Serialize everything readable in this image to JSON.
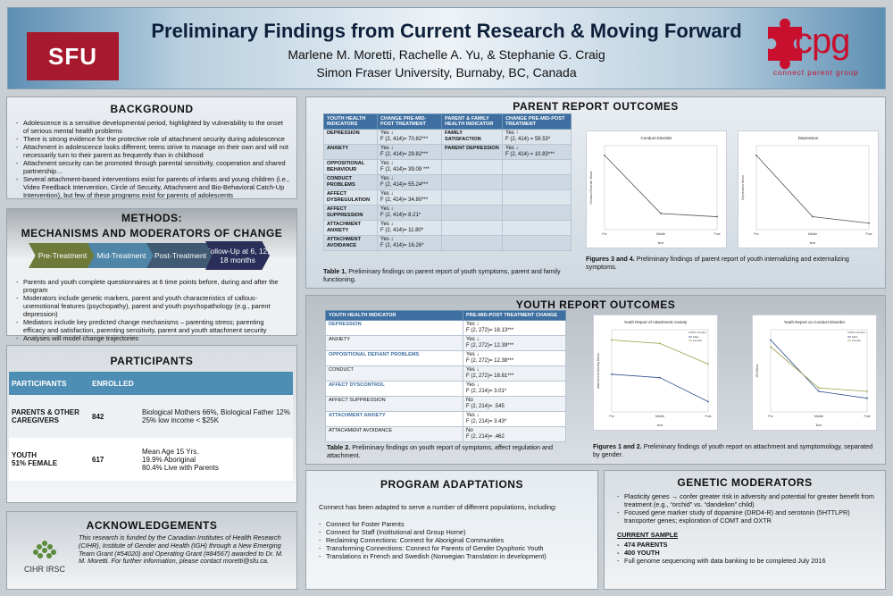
{
  "header": {
    "sfu_logo": "SFU",
    "title": "Preliminary Findings from Current Research & Moving Forward",
    "authors": "Marlene M. Moretti, Rachelle A. Yu, & Stephanie G. Craig",
    "university": "Simon Fraser University, Burnaby, BC, Canada",
    "cpg_logo": "cpg",
    "cpg_sub": "connect parent group",
    "colors": {
      "sfu_red": "#a6192e",
      "cpg_red": "#c8102e",
      "header_blue": "#5d8fb3"
    }
  },
  "background": {
    "title": "BACKGROUND",
    "bullets": [
      "Adolescence is a sensitive developmental period, highlighted by vulnerability to the onset of serious mental health problems",
      "There is strong evidence for the protective role of attachment security during adolescence",
      "Attachment in adolescence looks different; teens strive to manage on their own and will not necessarily turn to their parent as frequently than in childhood",
      "Attachment security can be promoted through parental sensitivity, cooperation and shared partnership…",
      "Several attachment-based interventions exist for parents of infants and young children (i.e., Video Feedback Intervention, Circle of Security, Attachment and Bio-Behavioral Catch-Up Intervention), but few of these programs exist for parents of adolescents"
    ]
  },
  "methods": {
    "title_line1": "METHODS:",
    "title_line2": "MECHANISMS AND MODERATORS OF CHANGE",
    "steps": [
      "Pre-Treatment",
      "Mid-Treatment",
      "Post-Treatment",
      "Follow-Up at 6, 12, 18 months"
    ],
    "bullets": [
      "Parents and youth complete questionnaires at 6 time points before, during and after the program",
      "Moderators include genetic markers, parent and youth characteristics of callous-unemotional features (psychopathy), parent and youth psychopathology (e.g., parent depression)",
      "Mediators include key predicted change mechanisms – parenting stress; parenting efficacy and satisfaction, parenting sensitivity, parent and youth attachment security",
      "Analyses will model change trajectories"
    ]
  },
  "participants": {
    "title": "PARTICIPANTS",
    "headers": [
      "PARTICIPANTS",
      "ENROLLED",
      ""
    ],
    "rows": [
      {
        "label": "PARENTS & OTHER CAREGIVERS",
        "enrolled": "842",
        "details": [
          "Biological Mothers 66%, Biological Father 12%",
          "25% low income < $25K"
        ]
      },
      {
        "label": "YOUTH",
        "label2": "51% FEMALE",
        "enrolled": "617",
        "details": [
          "Mean Age 15 Yrs.",
          "19.9% Aboriginal",
          "80.4% Live with Parents"
        ]
      }
    ]
  },
  "acknowledgements": {
    "title": "ACKNOWLEDGEMENTS",
    "text": "This research is funded by the Canadian Institutes of Health Research (CIHR), Institute of Gender and Health (IGH) through a New Emerging Team Grant (#54020) and Operating Grant (#84567) awarded to Dr. M. M. Moretti. For further information, please contact moretti@sfu.ca.",
    "logo": "CIHR IRSC"
  },
  "parent_report": {
    "title": "PARENT REPORT OUTCOMES",
    "headers": [
      "YOUTH HEALTH INDICATORS",
      "CHANGE PRE-MID-POST TREATMENT",
      "PARENT & FAMILY HEALTH INDICATOR",
      "CHANGE PRE-MID-POST TREATMENT"
    ],
    "rows": [
      [
        "DEPRESSION",
        "Yes ↓",
        "F (2, 414)= 70.82***",
        "FAMILY SATISFACTION",
        "Yes ↑",
        "F (2, 414) = 59.53*"
      ],
      [
        "ANXIETY",
        "Yes ↓",
        "F (2, 414)= 29.82***",
        "PARENT DEPRESSION",
        "Yes ↓",
        "F (2, 414) = 10.83***"
      ],
      [
        "OPPOSITIONAL BEHAVIOUR",
        "Yes ↓",
        "F (2, 414)= 39.09 ***",
        "",
        "",
        ""
      ],
      [
        "CONDUCT PROBLEMS",
        "Yes ↓",
        "F (2, 414)= 55.24***",
        "",
        "",
        ""
      ],
      [
        "AFFECT DYSREGULATION",
        "Yes ↓",
        "F (2, 414)= 34.80***",
        "",
        "",
        ""
      ],
      [
        "AFFECT SUPPRESSION",
        "Yes ↓",
        "F (2, 414)= 8.21*",
        "",
        "",
        ""
      ],
      [
        "ATTACHMENT ANXIETY",
        "Yes ↓",
        "F (2, 414)= 11.80*",
        "",
        "",
        ""
      ],
      [
        "ATTACHMENT AVOIDANCE",
        "Yes ↓",
        "F (2, 414)= 16.26*",
        "",
        "",
        ""
      ]
    ],
    "caption_label": "Table 1.",
    "caption": "Preliminary findings on parent report of youth symptoms, parent and family functioning.",
    "fig_caption_label": "Figures 3 and 4.",
    "fig_caption": "Preliminary findings of parent report of youth internalizing and externalizing symptoms."
  },
  "youth_report": {
    "title": "YOUTH REPORT OUTCOMES",
    "headers": [
      "YOUTH HEALTH INDICATOR",
      "PRE-MID-POST TREATMENT CHANGE"
    ],
    "rows": [
      [
        "DEPRESSION",
        "Yes ↓",
        "F (2, 272)= 18.13***"
      ],
      [
        "ANXIETY",
        "Yes ↓",
        "F (2, 272)= 12.39***"
      ],
      [
        "OPPOSITIONAL DEFIANT PROBLEMS",
        "Yes ↓",
        "F (2, 272)= 12.38***"
      ],
      [
        "CONDUCT",
        "Yes ↓",
        "F (2, 272)= 18.81***"
      ],
      [
        "AFFECT DYSCONTROL",
        "Yes ↓",
        "F (2, 214)= 3.01*"
      ],
      [
        "AFFECT SUPPRESSION",
        "No",
        "F (2, 214)= .545"
      ],
      [
        "ATTACHMENT ANXIETY",
        "Yes ↓",
        "F (2, 214)= 3.43*"
      ],
      [
        "ATTACHMENT AVOIDANCE",
        "No",
        "F (2, 214)= .462"
      ]
    ],
    "caption_label": "Table 2.",
    "caption": "Preliminary findings on youth report of symptoms, affect regulation and attachment.",
    "fig_caption_label": "Figures 1 and 2.",
    "fig_caption": "Preliminary findings of youth report on attachment and symptomology, separated by gender."
  },
  "program": {
    "title": "PROGRAM ADAPTATIONS",
    "intro": "Connect has been adapted to serve a number of different populations, including:",
    "bullets": [
      "Connect for Foster Parents",
      "Connect for Staff (Institutional and Group Home)",
      "Reclaiming Connections: Connect for Aboriginal Communities",
      "Transforming Connections: Connect for Parents of Gender Dysphoric Youth",
      "Translations in  French and Swedish (Norwegian Translation in development)"
    ]
  },
  "genetic": {
    "title": "GENETIC MODERATORS",
    "bullets": [
      "Plasticity genes → confer greater risk in adversity and potential for greater benefit from treatment (e.g., “orchid” vs. “dandelion” child)",
      "Focused gene marker study of dopamine (DRD4-R) and serotonin (5HTTLPR) transporter genes; exploration of COMT and OXTR"
    ],
    "sample_title": "CURRENT SAMPLE",
    "sample": [
      "474 PARENTS",
      "400 YOUTH",
      "Full genome sequencing with data banking to be completed July 2016"
    ]
  },
  "chart_data": [
    {
      "type": "line",
      "title": "Conduct Disorder",
      "xlabel": "time",
      "ylabel": "Conduct Disorder Mean",
      "categories": [
        "Pre",
        "Middle",
        "Post"
      ],
      "series": [
        {
          "values": [
            7.1,
            5.3,
            5.2
          ]
        }
      ],
      "ylim": [
        4.8,
        7.4
      ]
    },
    {
      "type": "line",
      "title": "Depression",
      "xlabel": "time",
      "ylabel": "Depression Mean",
      "categories": [
        "Pre",
        "Middle",
        "Post"
      ],
      "series": [
        {
          "values": [
            7.1,
            5.2,
            5.0
          ]
        }
      ],
      "ylim": [
        4.8,
        7.4
      ]
    },
    {
      "type": "line",
      "title": "Youth Report of Attachment Anxiety",
      "xlabel": "time",
      "ylabel": "Attachment Anxiety Mean",
      "categories": [
        "Pre",
        "Middle",
        "Post"
      ],
      "legend_title": "Child's Gender",
      "series": [
        {
          "name": "Male",
          "values": [
            2.3,
            2.2,
            1.5
          ]
        },
        {
          "name": "Female",
          "values": [
            3.3,
            3.2,
            2.6
          ]
        }
      ],
      "ylim": [
        1.2,
        3.6
      ]
    },
    {
      "type": "line",
      "title": "Youth Report on Conduct Disorder",
      "xlabel": "time",
      "ylabel": "CD Mean",
      "categories": [
        "Pre",
        "Middle",
        "Post"
      ],
      "legend_title": "Child's Gender",
      "series": [
        {
          "name": "Male",
          "values": [
            3.3,
            1.8,
            1.6
          ]
        },
        {
          "name": "Female",
          "values": [
            3.1,
            1.9,
            1.8
          ]
        }
      ],
      "ylim": [
        1.2,
        3.6
      ]
    }
  ]
}
